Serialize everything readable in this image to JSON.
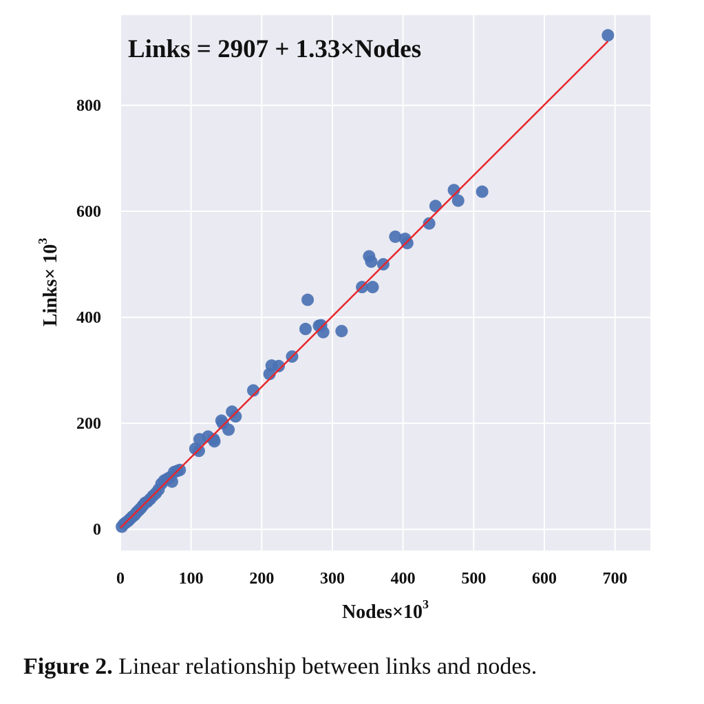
{
  "chart_data": {
    "type": "scatter",
    "title": "",
    "annotation": "Links = 2907 + 1.33×Nodes",
    "xlabel": "Nodes×10",
    "xlabel_sup": "3",
    "ylabel": "Links× 10",
    "ylabel_sup": "3",
    "xlim": [
      0,
      750
    ],
    "ylim": [
      -40,
      970
    ],
    "xticks": [
      0,
      100,
      200,
      300,
      400,
      500,
      600,
      700
    ],
    "yticks": [
      0,
      200,
      400,
      600,
      800
    ],
    "grid": true,
    "fit_line": {
      "intercept": 2.907,
      "slope": 1.33,
      "x_range": [
        0,
        690
      ],
      "color": "#e8262b"
    },
    "point_color": "#4a71b3",
    "background": "#eaeaf2",
    "series": [
      {
        "values": [
          [
            2,
            5
          ],
          [
            5,
            10
          ],
          [
            8,
            13
          ],
          [
            11,
            16
          ],
          [
            14,
            20
          ],
          [
            17,
            24
          ],
          [
            20,
            27
          ],
          [
            23,
            32
          ],
          [
            26,
            36
          ],
          [
            29,
            40
          ],
          [
            32,
            45
          ],
          [
            35,
            50
          ],
          [
            38,
            52
          ],
          [
            42,
            57
          ],
          [
            46,
            63
          ],
          [
            50,
            68
          ],
          [
            54,
            75
          ],
          [
            58,
            86
          ],
          [
            62,
            92
          ],
          [
            66,
            95
          ],
          [
            70,
            98
          ],
          [
            73,
            90
          ],
          [
            76,
            108
          ],
          [
            80,
            110
          ],
          [
            84,
            112
          ],
          [
            106,
            152
          ],
          [
            111,
            148
          ],
          [
            112,
            170
          ],
          [
            124,
            175
          ],
          [
            132,
            170
          ],
          [
            133,
            166
          ],
          [
            143,
            205
          ],
          [
            145,
            200
          ],
          [
            153,
            188
          ],
          [
            158,
            222
          ],
          [
            163,
            213
          ],
          [
            188,
            262
          ],
          [
            211,
            293
          ],
          [
            214,
            309
          ],
          [
            224,
            308
          ],
          [
            243,
            326
          ],
          [
            262,
            378
          ],
          [
            265,
            433
          ],
          [
            281,
            384
          ],
          [
            284,
            385
          ],
          [
            287,
            372
          ],
          [
            313,
            374
          ],
          [
            342,
            457
          ],
          [
            352,
            515
          ],
          [
            355,
            505
          ],
          [
            357,
            457
          ],
          [
            372,
            500
          ],
          [
            389,
            552
          ],
          [
            403,
            548
          ],
          [
            406,
            540
          ],
          [
            437,
            577
          ],
          [
            446,
            610
          ],
          [
            472,
            640
          ],
          [
            478,
            620
          ],
          [
            512,
            637
          ],
          [
            690,
            932
          ]
        ]
      }
    ]
  },
  "figure": {
    "caption_label": "Figure 2.",
    "caption_text": " Linear relationship between links and nodes."
  }
}
